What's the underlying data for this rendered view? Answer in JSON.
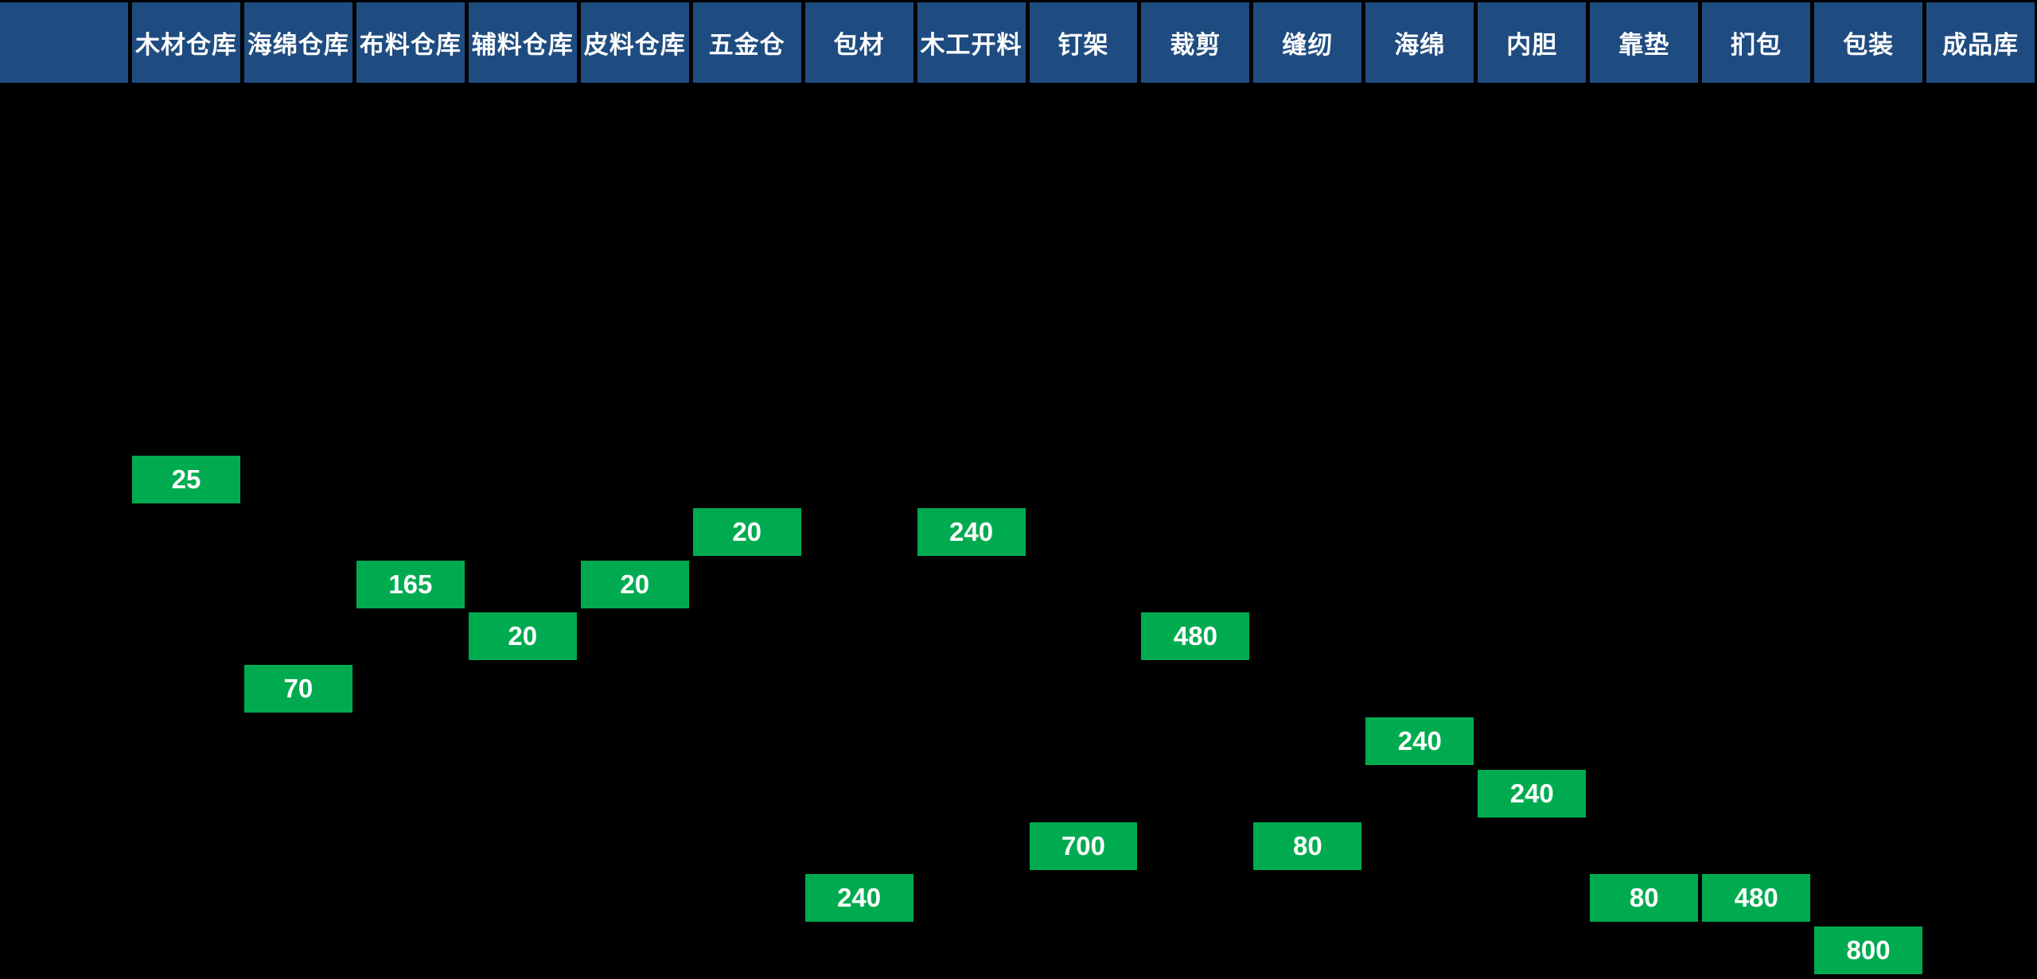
{
  "board": {
    "corner_label": "",
    "columns": [
      "木材仓库",
      "海绵仓库",
      "布料仓库",
      "辅料仓库",
      "皮料仓库",
      "五金仓",
      "包材",
      "木工开料",
      "钉架",
      "裁剪",
      "缝纫",
      "海绵",
      "内胆",
      "靠垫",
      "扪包",
      "包装",
      "成品库"
    ]
  },
  "colors": {
    "background": "#000000",
    "header_bg": "#1F4C80",
    "value_bg": "#00AB50",
    "text": "#FFFFFF"
  },
  "chart_data": {
    "type": "table",
    "title": "",
    "description": "Process flow board: quantity cells placed under each process-stage column, ordered top-to-bottom as flow sequence rows",
    "columns": [
      "木材仓库",
      "海绵仓库",
      "布料仓库",
      "辅料仓库",
      "皮料仓库",
      "五金仓",
      "包材",
      "木工开料",
      "钉架",
      "裁剪",
      "缝纫",
      "海绵",
      "内胆",
      "靠垫",
      "扪包",
      "包装",
      "成品库"
    ],
    "cells": [
      {
        "stage": "木材仓库",
        "col": 1,
        "row": 1,
        "value": 25
      },
      {
        "stage": "五金仓",
        "col": 6,
        "row": 2,
        "value": 20
      },
      {
        "stage": "木工开料",
        "col": 8,
        "row": 2,
        "value": 240
      },
      {
        "stage": "布料仓库",
        "col": 3,
        "row": 3,
        "value": 165
      },
      {
        "stage": "皮料仓库",
        "col": 5,
        "row": 3,
        "value": 20
      },
      {
        "stage": "辅料仓库",
        "col": 4,
        "row": 4,
        "value": 20
      },
      {
        "stage": "裁剪",
        "col": 10,
        "row": 4,
        "value": 480
      },
      {
        "stage": "海绵仓库",
        "col": 2,
        "row": 5,
        "value": 70
      },
      {
        "stage": "海绵",
        "col": 12,
        "row": 6,
        "value": 240
      },
      {
        "stage": "内胆",
        "col": 13,
        "row": 7,
        "value": 240
      },
      {
        "stage": "钉架",
        "col": 9,
        "row": 8,
        "value": 700
      },
      {
        "stage": "缝纫",
        "col": 11,
        "row": 8,
        "value": 80
      },
      {
        "stage": "包材",
        "col": 7,
        "row": 9,
        "value": 240
      },
      {
        "stage": "靠垫",
        "col": 14,
        "row": 9,
        "value": 80
      },
      {
        "stage": "扪包",
        "col": 15,
        "row": 9,
        "value": 480
      },
      {
        "stage": "包装",
        "col": 16,
        "row": 10,
        "value": 800
      }
    ]
  }
}
